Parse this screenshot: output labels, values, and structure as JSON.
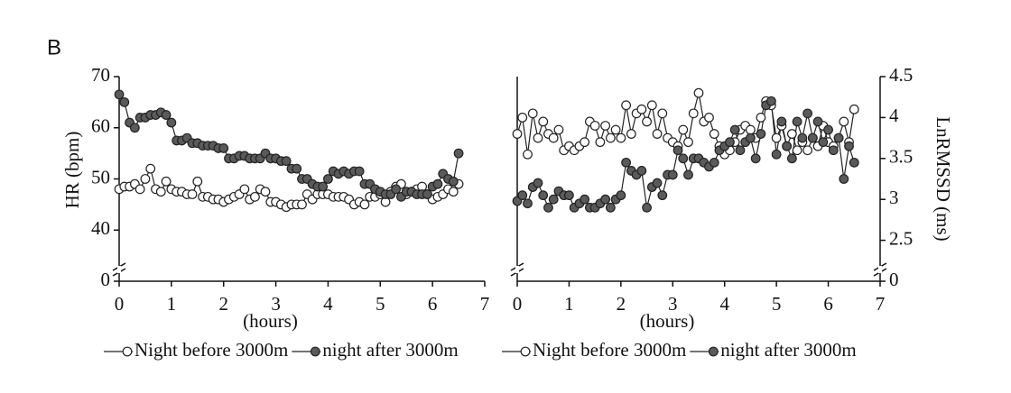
{
  "panel_label": "B",
  "chart_data": [
    {
      "type": "line",
      "y_label": "HR (bpm)",
      "x_label": "(hours)",
      "xlim": [
        0,
        7
      ],
      "xticks": [
        0,
        1,
        2,
        3,
        4,
        5,
        6,
        7
      ],
      "ylim": [
        0,
        70
      ],
      "yticks": [
        0,
        40,
        50,
        60,
        70
      ],
      "axis_break": [
        0,
        30
      ],
      "x": [
        0,
        0.1,
        0.2,
        0.3,
        0.4,
        0.5,
        0.6,
        0.7,
        0.8,
        0.9,
        1,
        1.1,
        1.2,
        1.3,
        1.4,
        1.5,
        1.6,
        1.7,
        1.8,
        1.9,
        2,
        2.1,
        2.2,
        2.3,
        2.4,
        2.5,
        2.6,
        2.7,
        2.8,
        2.9,
        3,
        3.1,
        3.2,
        3.3,
        3.4,
        3.5,
        3.6,
        3.7,
        3.8,
        3.9,
        4,
        4.1,
        4.2,
        4.3,
        4.4,
        4.5,
        4.6,
        4.7,
        4.8,
        4.9,
        5,
        5.1,
        5.2,
        5.3,
        5.4,
        5.5,
        5.6,
        5.7,
        5.8,
        5.9,
        6,
        6.1,
        6.2,
        6.3,
        6.4,
        6.5
      ],
      "series": [
        {
          "name": "Night before 3000m",
          "color": "#ffffff",
          "values": [
            48,
            48.5,
            48.5,
            49,
            48,
            50,
            52,
            48,
            47.5,
            49.5,
            48,
            47.5,
            47.5,
            47,
            47,
            49.5,
            46.5,
            46.5,
            46,
            46,
            45.5,
            46,
            46.5,
            47,
            48,
            46,
            46.5,
            48,
            47.5,
            45.5,
            45.5,
            45,
            44.5,
            45,
            45,
            45,
            47,
            46,
            47,
            47,
            47,
            46.5,
            46.5,
            46.5,
            46,
            45,
            45.5,
            45,
            46.5,
            46.5,
            47,
            45.5,
            47.5,
            48.5,
            49,
            47,
            47.5,
            48,
            48.5,
            47,
            46,
            46.5,
            47,
            48,
            47.5,
            49
          ]
        },
        {
          "name": "night after 3000m",
          "color": "#5a5a5a",
          "values": [
            66.5,
            65,
            61,
            60,
            62,
            62,
            62.5,
            62.5,
            63,
            62.5,
            61,
            57.5,
            57.5,
            58,
            57,
            57,
            56.5,
            56.5,
            56.5,
            56,
            56,
            54,
            54,
            54.5,
            54.5,
            54,
            54,
            54,
            55,
            54,
            54,
            53.5,
            53.5,
            52,
            52,
            50,
            50,
            49,
            48.5,
            48.5,
            50,
            51.5,
            51,
            51.5,
            51,
            51.5,
            51.5,
            49,
            49,
            48,
            47.5,
            47,
            47,
            48,
            46.5,
            47.5,
            47.5,
            47,
            47,
            47,
            48.5,
            49,
            51,
            50,
            49.5,
            55
          ]
        }
      ]
    },
    {
      "type": "line",
      "y2_label": "LnRMSSD (ms)",
      "x_label": "(hours)",
      "xlim": [
        0,
        7
      ],
      "xticks": [
        0,
        1,
        2,
        3,
        4,
        5,
        6,
        7
      ],
      "y2lim": [
        0,
        4.5
      ],
      "y2ticks": [
        0,
        2.5,
        3,
        3.5,
        4,
        4.5
      ],
      "axis_break": [
        0,
        2
      ],
      "x": [
        0,
        0.1,
        0.2,
        0.3,
        0.4,
        0.5,
        0.6,
        0.7,
        0.8,
        0.9,
        1,
        1.1,
        1.2,
        1.3,
        1.4,
        1.5,
        1.6,
        1.7,
        1.8,
        1.9,
        2,
        2.1,
        2.2,
        2.3,
        2.4,
        2.5,
        2.6,
        2.7,
        2.8,
        2.9,
        3,
        3.1,
        3.2,
        3.3,
        3.4,
        3.5,
        3.6,
        3.7,
        3.8,
        3.9,
        4,
        4.1,
        4.2,
        4.3,
        4.4,
        4.5,
        4.6,
        4.7,
        4.8,
        4.9,
        5,
        5.1,
        5.2,
        5.3,
        5.4,
        5.5,
        5.6,
        5.7,
        5.8,
        5.9,
        6,
        6.1,
        6.2,
        6.3,
        6.4,
        6.5
      ],
      "series": [
        {
          "name": "Night before 3000m",
          "color": "#ffffff",
          "axis": "y2",
          "values": [
            3.8,
            4.0,
            3.55,
            4.05,
            3.75,
            3.95,
            3.8,
            3.75,
            3.85,
            3.6,
            3.65,
            3.6,
            3.65,
            3.7,
            3.95,
            3.9,
            3.7,
            3.9,
            3.75,
            3.85,
            3.75,
            4.15,
            3.8,
            4.05,
            4.1,
            3.95,
            4.15,
            3.8,
            4.05,
            3.75,
            3.7,
            3.65,
            3.85,
            3.7,
            4.05,
            4.3,
            3.95,
            4.0,
            3.8,
            3.65,
            3.55,
            3.6,
            3.7,
            3.85,
            3.9,
            3.85,
            3.75,
            4.0,
            4.2,
            4.15,
            3.75,
            3.9,
            3.65,
            3.8,
            3.6,
            3.7,
            3.6,
            3.75,
            3.65,
            3.9,
            3.7,
            3.65,
            3.75,
            3.95,
            3.7,
            4.1
          ]
        },
        {
          "name": "night after 3000m",
          "color": "#5a5a5a",
          "axis": "y2",
          "values": [
            2.98,
            3.05,
            2.95,
            3.15,
            3.2,
            3.05,
            2.9,
            3.0,
            3.1,
            3.05,
            3.05,
            2.9,
            2.95,
            3.0,
            2.9,
            2.9,
            2.95,
            3.0,
            2.9,
            3.0,
            3.05,
            3.45,
            3.35,
            3.3,
            3.35,
            2.9,
            3.15,
            3.2,
            3.05,
            3.3,
            3.3,
            3.6,
            3.5,
            3.3,
            3.5,
            3.5,
            3.45,
            3.4,
            3.45,
            3.6,
            3.65,
            3.7,
            3.85,
            3.6,
            3.7,
            3.75,
            3.5,
            3.8,
            4.15,
            4.2,
            3.55,
            3.95,
            3.65,
            3.5,
            3.95,
            3.75,
            4.05,
            3.75,
            3.95,
            3.7,
            3.85,
            3.6,
            3.75,
            3.25,
            3.65,
            3.45
          ]
        }
      ]
    }
  ]
}
